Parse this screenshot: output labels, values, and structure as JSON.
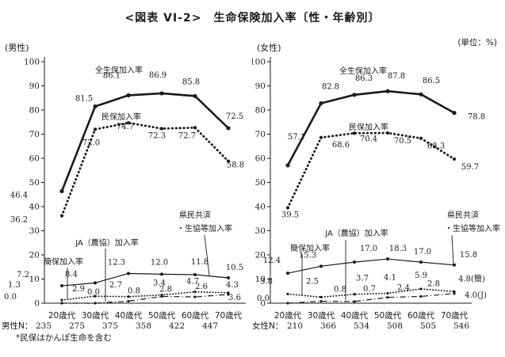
{
  "title": "<図表 VI-2>　生命保険加入率〔性・年齢別〕",
  "unit_label": "(単位：%)",
  "footnote": "*民保はかんぽ生命を含む",
  "chart_data": [
    {
      "type": "line",
      "title": "(男性)",
      "n_prefix": "男性N：",
      "n_values": [
        "235",
        "275",
        "375",
        "358",
        "422",
        "447"
      ],
      "categories": [
        "20歳代",
        "30歳代",
        "40歳代",
        "50歳代",
        "60歳代",
        "70歳代"
      ],
      "ylim": [
        0,
        100
      ],
      "ytick_step": 10,
      "grid": false,
      "legend_position": "inline-annotations",
      "series": [
        {
          "name": "全生保加入率",
          "style": "solid-thick",
          "values": [
            46.4,
            81.5,
            86.1,
            86.9,
            85.8,
            72.5
          ],
          "point_labels": [
            "46.4",
            "81.5",
            "86.1",
            "86.9",
            "85.8",
            "72.5"
          ]
        },
        {
          "name": "民保加入率",
          "style": "dotted-thick",
          "values": [
            36.2,
            72.0,
            74.7,
            72.3,
            72.7,
            58.8
          ],
          "point_labels": [
            "36.2",
            "72.0",
            "74.7",
            "72.3",
            "72.7",
            "58.8"
          ]
        },
        {
          "name": "県民共済・生協等加入率",
          "name_lines": [
            "県民共済",
            "・生協等加入率"
          ],
          "style": "solid-thin",
          "values": [
            7.2,
            8.4,
            12.3,
            12.0,
            11.8,
            10.5
          ],
          "point_labels": [
            "7.2",
            "8.4",
            "12.3",
            "12.0",
            "11.8",
            "10.5"
          ]
        },
        {
          "name": "簡保加入率",
          "style": "dotted-thin",
          "values": [
            1.3,
            2.9,
            2.7,
            3.4,
            4.7,
            4.3
          ],
          "point_labels": [
            "1.3",
            "2.9",
            "2.7",
            "3.4",
            "4.7",
            "4.3"
          ]
        },
        {
          "name": "JA（農協）加入率",
          "style": "dashdot",
          "values": [
            0.0,
            0.0,
            0.8,
            2.8,
            2.6,
            3.6
          ],
          "point_labels": [
            "0.0",
            "0.0",
            "0.8",
            "2.8",
            "2.6",
            "3.6"
          ]
        }
      ]
    },
    {
      "type": "line",
      "title": "(女性)",
      "n_prefix": "女性N：",
      "n_values": [
        "210",
        "366",
        "534",
        "508",
        "505",
        "546"
      ],
      "categories": [
        "20歳代",
        "30歳代",
        "40歳代",
        "50歳代",
        "60歳代",
        "70歳代"
      ],
      "ylim": [
        0,
        100
      ],
      "ytick_step": 10,
      "grid": false,
      "legend_position": "inline-annotations",
      "series": [
        {
          "name": "全生保加入率",
          "style": "solid-thick",
          "values": [
            57.1,
            82.8,
            86.3,
            87.8,
            86.5,
            78.8
          ],
          "point_labels": [
            "57.1",
            "82.8",
            "86.3",
            "87.8",
            "86.5",
            "78.8"
          ]
        },
        {
          "name": "民保加入率",
          "style": "dotted-thick",
          "values": [
            39.5,
            68.6,
            70.4,
            70.5,
            68.3,
            59.7
          ],
          "point_labels": [
            "39.5",
            "68.6",
            "70.4",
            "70.5",
            "68.3",
            "59.7"
          ]
        },
        {
          "name": "県民共済・生協等加入率",
          "name_lines": [
            "県民共済",
            "・生協等加入率"
          ],
          "style": "solid-thin",
          "values": [
            12.4,
            15.3,
            17.0,
            18.3,
            17.0,
            15.8
          ],
          "point_labels": [
            "12.4",
            "15.3",
            "17.0",
            "18.3",
            "17.0",
            "15.8"
          ]
        },
        {
          "name": "簡保加入率",
          "style": "dotted-thin",
          "values": [
            3.8,
            2.5,
            3.7,
            4.1,
            5.9,
            4.8
          ],
          "point_labels": [
            "3.8",
            "2.5",
            "3.7",
            "4.1",
            "5.9",
            "4.8(簡)"
          ]
        },
        {
          "name": "JA（農協）加入率",
          "style": "dashdot",
          "values": [
            0.0,
            0.8,
            0.7,
            2.4,
            2.8,
            4.0
          ],
          "point_labels": [
            "0.0",
            "0.8",
            "0.7",
            "2.4",
            "2.8",
            "4.0(J)"
          ]
        }
      ]
    }
  ]
}
